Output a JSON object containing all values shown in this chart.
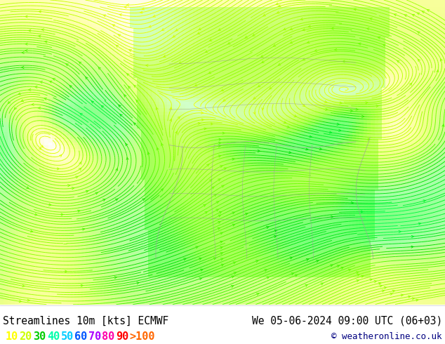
{
  "title_left": "Streamlines 10m [kts] ECMWF",
  "title_right": "We 05-06-2024 09:00 UTC (06+03)",
  "copyright": "© weatheronline.co.uk",
  "legend_values": [
    "10",
    "20",
    "30",
    "40",
    "50",
    "60",
    "70",
    "80",
    "90",
    ">100"
  ],
  "legend_colors": [
    "#ffff00",
    "#ccff00",
    "#00cc00",
    "#00ffaa",
    "#00ccff",
    "#0055ff",
    "#aa00ff",
    "#ff00aa",
    "#ff0000",
    "#ff6600"
  ],
  "bg_color": "#ffffff",
  "ocean_color": "#f5f5f5",
  "land_fill_color": "#e8ffe8",
  "land_border_color": "#888888",
  "title_color": "#000000",
  "title_fontsize": 10.5,
  "legend_fontsize": 11,
  "copyright_color": "#000080",
  "fig_width": 6.34,
  "fig_height": 4.9,
  "dpi": 100,
  "stream_colors_slow": "#ffdd00",
  "stream_colors_medium": "#88dd00",
  "stream_colors_fast": "#00cc00",
  "stream_colors_vfast": "#00ff88"
}
